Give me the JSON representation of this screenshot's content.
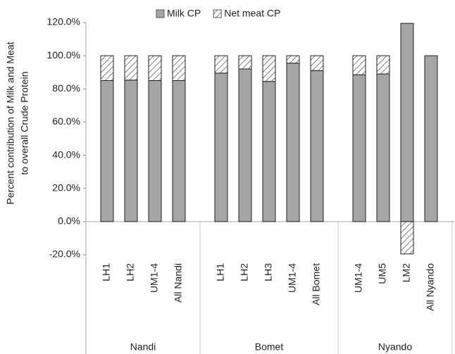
{
  "chart_data": {
    "type": "stacked_bar",
    "legend": "top",
    "y_label": [
      "Percent contribution of Milk and Meat",
      "to overall Crude Protein"
    ],
    "groups": [
      {
        "label": "Nandi",
        "categories": [
          "LH1",
          "LH2",
          "UM1-4",
          "All Nandi"
        ]
      },
      {
        "label": "Bomet",
        "categories": [
          "LH1",
          "LH2",
          "LH3",
          "UM1-4",
          "All Bomet"
        ]
      },
      {
        "label": "Nyando",
        "categories": [
          "UM1-4",
          "UM5",
          "LM2",
          "All Nyando"
        ]
      }
    ],
    "series": [
      {
        "name": "Milk CP",
        "color": "#a6a6a6",
        "pattern": "solid",
        "values": [
          85,
          85.3,
          85,
          85,
          89.5,
          92,
          84.5,
          95.5,
          91,
          88.5,
          89,
          119.5,
          100
        ]
      },
      {
        "name": "Net meat CP",
        "color": "#555555",
        "pattern": "hatch",
        "values": [
          15,
          14.7,
          15,
          15,
          10.5,
          8,
          15.5,
          4.5,
          9,
          11.5,
          11,
          -19.5,
          0
        ]
      }
    ],
    "ylim": [
      -20,
      120
    ],
    "yticks": [
      {
        "value": -20,
        "label": "-20.0%"
      },
      {
        "value": 0,
        "label": "0.0%"
      },
      {
        "value": 20,
        "label": "20.0%"
      },
      {
        "value": 40,
        "label": "40.0%"
      },
      {
        "value": 60,
        "label": "60.0%"
      },
      {
        "value": 80,
        "label": "80.0%"
      },
      {
        "value": 100,
        "label": "100.0%"
      },
      {
        "value": 120,
        "label": "120.0%"
      }
    ]
  }
}
